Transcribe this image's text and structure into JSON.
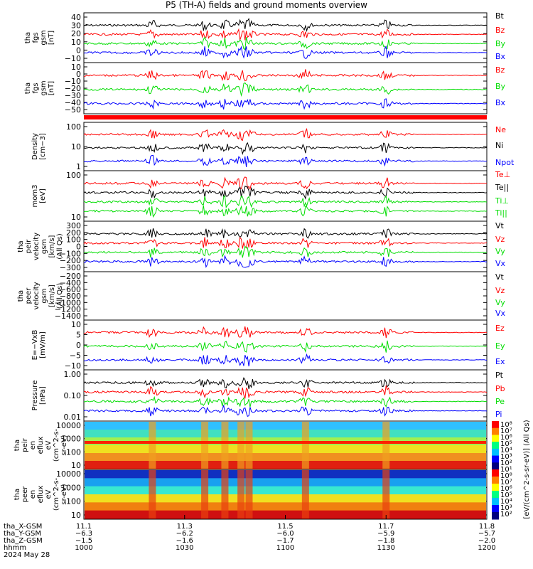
{
  "title": "P5 (TH-A) fields and ground moments overview",
  "colors": {
    "black": "#000000",
    "red": "#ff0000",
    "green": "#00dd00",
    "blue": "#0000ff"
  },
  "chart_data": [
    {
      "type": "line",
      "panel": "fgs_gsm",
      "ylabel": [
        "tha",
        "fgs",
        "gsm",
        "[nT]"
      ],
      "yticks": [
        "40",
        "30",
        "20",
        "10",
        "0",
        "−10"
      ],
      "ylim": [
        -15,
        45
      ],
      "series": [
        {
          "name": "Bt",
          "color": "#000000",
          "base": 22
        },
        {
          "name": "Bz",
          "color": "#ff0000",
          "base": 20
        },
        {
          "name": "By",
          "color": "#00dd00",
          "base": 8
        },
        {
          "name": "Bx",
          "color": "#0000ff",
          "base": -3
        }
      ]
    },
    {
      "type": "line",
      "panel": "fgs_dsl",
      "ylabel": [
        "tha",
        "fgs",
        "gsm",
        "[nT]"
      ],
      "yticks": [
        "10",
        "0",
        "−10",
        "−20",
        "−30",
        "−40",
        "−50"
      ],
      "ylim": [
        -55,
        15
      ],
      "series": [
        {
          "name": "Bz",
          "color": "#ff0000",
          "base": -28
        },
        {
          "name": "By",
          "color": "#00dd00",
          "base": -2
        },
        {
          "name": "Bx",
          "color": "#0000ff",
          "base": -13
        }
      ]
    },
    {
      "type": "line",
      "panel": "density",
      "ylabel": [
        "Density",
        "[cm−3]"
      ],
      "yticks": [
        "100",
        "10",
        "1"
      ],
      "ylim": [
        1,
        100
      ],
      "scale": "log",
      "series": [
        {
          "name": "Ne",
          "color": "#ff0000"
        },
        {
          "name": "Ni",
          "color": "#000000"
        },
        {
          "name": "Npot",
          "color": "#0000ff"
        }
      ]
    },
    {
      "type": "line",
      "panel": "temperature",
      "ylabel": [
        "mom3",
        "[eV]"
      ],
      "yticks": [
        "100",
        "10"
      ],
      "ylim": [
        10,
        1000
      ],
      "scale": "log",
      "series": [
        {
          "name": "Te⊥",
          "color": "#ff0000"
        },
        {
          "name": "Te||",
          "color": "#000000"
        },
        {
          "name": "Ti⊥",
          "color": "#00dd00"
        },
        {
          "name": "Ti||",
          "color": "#00dd00"
        }
      ]
    },
    {
      "type": "line",
      "panel": "peir_velocity",
      "ylabel": [
        "tha",
        "peir",
        "velocity",
        "gsm",
        "[km/s]",
        "(All Qs)"
      ],
      "yticks": [
        "300",
        "200",
        "100",
        "0",
        "−100",
        "−200",
        "−300"
      ],
      "ylim": [
        -300,
        300
      ],
      "series": [
        {
          "name": "Vt",
          "color": "#000000"
        },
        {
          "name": "Vz",
          "color": "#ff0000"
        },
        {
          "name": "Vy",
          "color": "#00dd00"
        },
        {
          "name": "Vx",
          "color": "#0000ff"
        }
      ]
    },
    {
      "type": "line",
      "panel": "peer_velocity",
      "ylabel": [
        "tha",
        "peer",
        "velocity",
        "gsm",
        "[km/s]",
        "(All Qs)"
      ],
      "yticks": [
        "−200",
        "−400",
        "−600",
        "−800",
        "−1000",
        "−1200",
        "−1400"
      ],
      "ylim": [
        -1500,
        -100
      ],
      "series": [
        {
          "name": "Vt",
          "color": "#000000"
        },
        {
          "name": "Vz",
          "color": "#ff0000"
        },
        {
          "name": "Vy",
          "color": "#00dd00"
        },
        {
          "name": "Vx",
          "color": "#0000ff"
        }
      ]
    },
    {
      "type": "line",
      "panel": "efield",
      "ylabel": [
        "E=−VxB",
        "[mV/m]"
      ],
      "yticks": [
        "10",
        "5",
        "0",
        "−5",
        "−10"
      ],
      "ylim": [
        -12,
        12
      ],
      "series": [
        {
          "name": "Ez",
          "color": "#ff0000"
        },
        {
          "name": "Ey",
          "color": "#00dd00"
        },
        {
          "name": "Ex",
          "color": "#0000ff"
        }
      ]
    },
    {
      "type": "line",
      "panel": "pressure",
      "ylabel": [
        "Pressure",
        "[nPa]"
      ],
      "yticks": [
        "1.00",
        "0.10",
        "0.01"
      ],
      "ylim": [
        0.005,
        2
      ],
      "scale": "log",
      "series": [
        {
          "name": "Pt",
          "color": "#000000"
        },
        {
          "name": "Pb",
          "color": "#ff0000"
        },
        {
          "name": "Pe",
          "color": "#00dd00"
        },
        {
          "name": "Pi",
          "color": "#0000ff"
        }
      ]
    },
    {
      "type": "heatmap",
      "panel": "peir_spec",
      "ylabel": [
        "tha",
        "peir",
        "en",
        "eflux",
        "eV",
        "(cm^2-s-",
        "sr-eV)"
      ],
      "yticks": [
        "10000",
        "1000",
        "100",
        "10"
      ]
    },
    {
      "type": "heatmap",
      "panel": "peer_spec",
      "ylabel": [
        "tha",
        "peer",
        "en",
        "eflux",
        "eV",
        "(cm^2-s-",
        "sr-eV)"
      ],
      "yticks": [
        "10000",
        "1000",
        "100",
        "10"
      ]
    }
  ],
  "colorbar": {
    "ticks": [
      "10⁸",
      "10⁷",
      "10⁶",
      "10⁵",
      "10⁴",
      "10³",
      "10²",
      "10¹",
      "10⁸",
      "10⁷",
      "10⁶",
      "10⁵",
      "10⁴",
      "10³",
      "10²"
    ],
    "label": "[eV/(cm^2-s-sr-eV)] (All Qs)"
  },
  "xaxis": {
    "row_labels": [
      "tha_X-GSM",
      "tha_Y-GSM",
      "tha_Z-GSM",
      "hhmm",
      "2024 May 28"
    ],
    "columns": [
      [
        "11.1",
        "−6.3",
        "−1.5",
        "1000"
      ],
      [
        "11.3",
        "−6.2",
        "−1.6",
        "1030"
      ],
      [
        "11.5",
        "−6.0",
        "−1.7",
        "1100"
      ],
      [
        "11.7",
        "−5.9",
        "−1.8",
        "1130"
      ],
      [
        "11.8",
        "−5.7",
        "−2.0",
        "1200"
      ]
    ]
  }
}
